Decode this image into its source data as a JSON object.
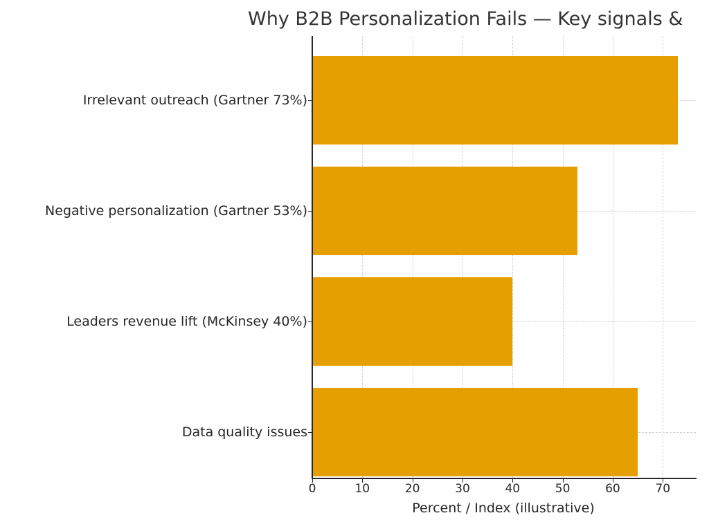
{
  "chart_data": {
    "type": "bar",
    "orientation": "horizontal",
    "title": "Why B2B Personalization Fails — Key signals &",
    "xlabel": "Percent / Index (illustrative)",
    "ylabel": "",
    "categories": [
      "Irrelevant outreach (Gartner 73%)",
      "Negative personalization (Gartner 53%)",
      "Leaders revenue lift (McKinsey 40%)",
      "Data quality issues"
    ],
    "values": [
      73,
      53,
      40,
      65
    ],
    "xlim": [
      0,
      76.6
    ],
    "xticks": [
      "0",
      "10",
      "20",
      "30",
      "40",
      "50",
      "60",
      "70"
    ],
    "grid": true,
    "legend": null,
    "bar_color": "#e69f00"
  }
}
